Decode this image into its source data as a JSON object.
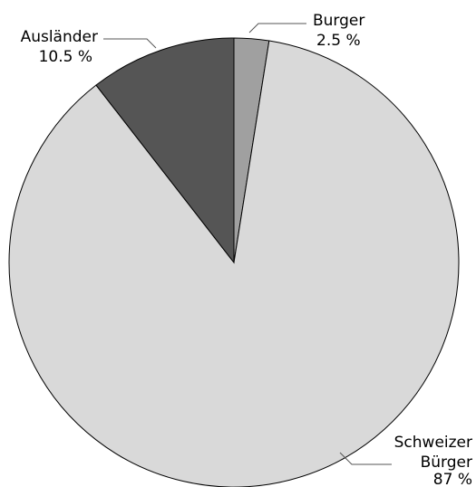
{
  "chart_data": {
    "type": "pie",
    "slices": [
      {
        "name": "Burger",
        "value": 2.5,
        "value_label": "2.5 %",
        "color": "#a0a0a0"
      },
      {
        "name": "Schweizer Bürger",
        "name_lines": [
          "Schweizer",
          "Bürger"
        ],
        "value": 87,
        "value_label": "87 %",
        "color": "#d9d9d9"
      },
      {
        "name": "Ausländer",
        "value": 10.5,
        "value_label": "10.5 %",
        "color": "#555555"
      }
    ],
    "start_angle": "top",
    "direction": "clockwise"
  }
}
